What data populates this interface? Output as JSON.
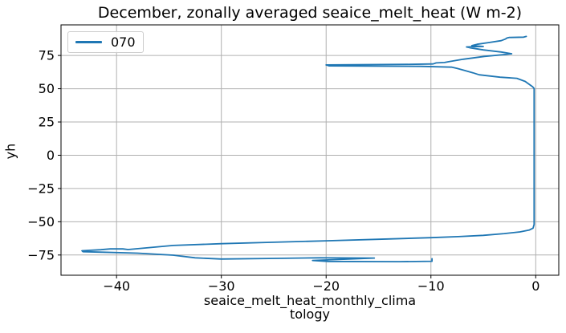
{
  "chart_data": {
    "type": "line",
    "title": "December, zonally averaged seaice_melt_heat (W m-2)",
    "xlabel": "seaice_melt_heat_monthly_climatology",
    "xlabel_lines": {
      "line1": "seaice_melt_heat_monthly_clima",
      "line2": "tology"
    },
    "ylabel": "yh",
    "xlim": [
      -45.3,
      2.2
    ],
    "ylim": [
      -90.2,
      98.0
    ],
    "xticks": [
      -40,
      -30,
      -20,
      -10,
      0
    ],
    "yticks": [
      -75,
      -50,
      -25,
      0,
      25,
      50,
      75
    ],
    "grid": true,
    "legend_position": "upper left",
    "colors": {
      "line": "#1f77b4",
      "grid": "#b0b0b0",
      "spine": "#000000",
      "text": "#000000"
    },
    "series": [
      {
        "name": "070",
        "color": "#1f77b4",
        "points": [
          [
            -9.9,
            -77.8
          ],
          [
            -9.9,
            -79.7
          ],
          [
            -13,
            -80
          ],
          [
            -19.8,
            -79.8
          ],
          [
            -21.3,
            -79.1
          ],
          [
            -15.4,
            -77.3
          ],
          [
            -20.6,
            -77.1
          ],
          [
            -25.5,
            -77.6
          ],
          [
            -30,
            -78
          ],
          [
            -32.5,
            -77.1
          ],
          [
            -34.6,
            -75.1
          ],
          [
            -38,
            -73.6
          ],
          [
            -41.3,
            -72.9
          ],
          [
            -43.2,
            -72.5
          ],
          [
            -43.3,
            -71.8
          ],
          [
            -41.5,
            -71
          ],
          [
            -40.6,
            -70.4
          ],
          [
            -39.4,
            -70.4
          ],
          [
            -38.9,
            -70.9
          ],
          [
            -34.6,
            -67.8
          ],
          [
            -30,
            -66.5
          ],
          [
            -25,
            -65.4
          ],
          [
            -20,
            -64.3
          ],
          [
            -15,
            -63.2
          ],
          [
            -10,
            -62
          ],
          [
            -7.4,
            -61.2
          ],
          [
            -5,
            -60.2
          ],
          [
            -3,
            -58.9
          ],
          [
            -1.5,
            -57.6
          ],
          [
            -0.6,
            -56.2
          ],
          [
            -0.25,
            -54.8
          ],
          [
            -0.15,
            -52
          ],
          [
            -0.15,
            50.2
          ],
          [
            -0.3,
            51.5
          ],
          [
            -1,
            55.5
          ],
          [
            -1.8,
            57.8
          ],
          [
            -3.4,
            58.7
          ],
          [
            -5.4,
            60.5
          ],
          [
            -6,
            62
          ],
          [
            -6.8,
            63.8
          ],
          [
            -7.5,
            65.3
          ],
          [
            -8,
            66.2
          ],
          [
            -11,
            66.8
          ],
          [
            -19.7,
            67.2
          ],
          [
            -20,
            67.9
          ],
          [
            -12,
            68.3
          ],
          [
            -9.8,
            68.6
          ],
          [
            -9.5,
            69.4
          ],
          [
            -8.7,
            69.7
          ],
          [
            -8.3,
            70.3
          ],
          [
            -6.9,
            72.2
          ],
          [
            -4.9,
            74.3
          ],
          [
            -3.1,
            75.6
          ],
          [
            -2.3,
            76.3
          ],
          [
            -3.3,
            77.6
          ],
          [
            -5,
            79.2
          ],
          [
            -6.2,
            80.7
          ],
          [
            -6.6,
            81.4
          ],
          [
            -5,
            81.8
          ],
          [
            -6.1,
            82.4
          ],
          [
            -5.6,
            83.4
          ],
          [
            -4.4,
            84.8
          ],
          [
            -3.3,
            86.1
          ],
          [
            -2.9,
            87.3
          ],
          [
            -2.75,
            88.1
          ],
          [
            -2.55,
            88.5
          ],
          [
            -1.15,
            88.8
          ],
          [
            -0.9,
            89.3
          ]
        ]
      }
    ]
  },
  "legend": {
    "entries": [
      {
        "label": "070",
        "color": "#1f77b4"
      }
    ]
  }
}
